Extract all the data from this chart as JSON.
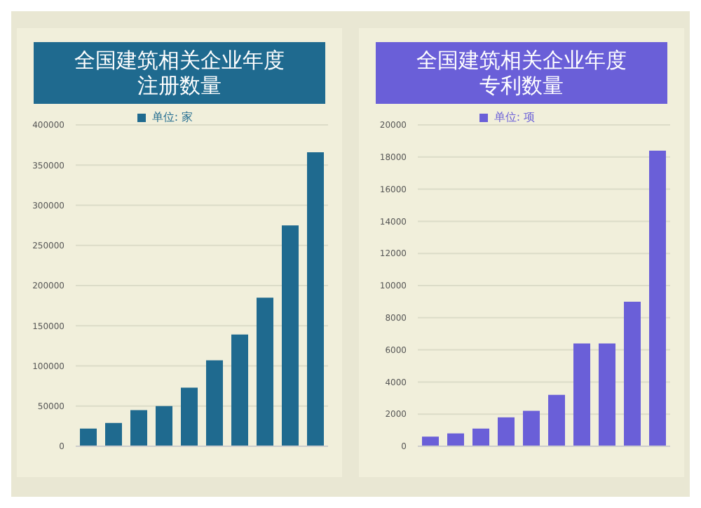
{
  "chart_data": [
    {
      "type": "bar",
      "title": "全国建筑相关企业年度注册数量",
      "categories": [
        null,
        null,
        null,
        null,
        null,
        null,
        null,
        null,
        null,
        null
      ],
      "series": [
        {
          "name": "单位: 家",
          "color": "#1f6a8f",
          "values": [
            22000,
            29000,
            45000,
            50000,
            73000,
            107000,
            139000,
            185000,
            275000,
            366000
          ]
        }
      ],
      "ylim": [
        0,
        400000
      ],
      "yticks": [
        0,
        50000,
        100000,
        150000,
        200000,
        250000,
        300000,
        350000,
        400000
      ],
      "grid": "y",
      "legend": "top"
    },
    {
      "type": "bar",
      "title": "全国建筑相关企业年度专利数量",
      "categories": [
        null,
        null,
        null,
        null,
        null,
        null,
        null,
        null,
        null,
        null
      ],
      "series": [
        {
          "name": "单位: 项",
          "color": "#6a5fd8",
          "values": [
            600,
            800,
            1100,
            1800,
            2200,
            3200,
            6400,
            6400,
            9000,
            18400
          ]
        }
      ],
      "ylim": [
        0,
        20000
      ],
      "yticks": [
        0,
        2000,
        4000,
        6000,
        8000,
        10000,
        12000,
        14000,
        16000,
        18000,
        20000
      ],
      "grid": "y",
      "legend": "top"
    }
  ]
}
